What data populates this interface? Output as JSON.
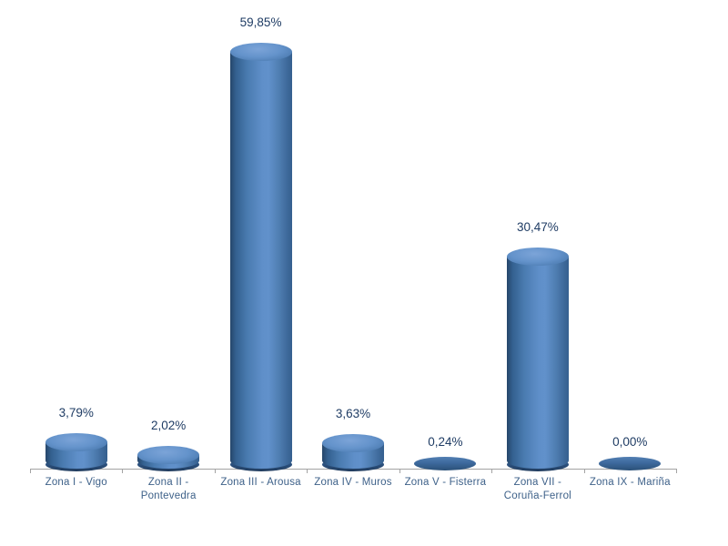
{
  "chart_data": {
    "type": "bar",
    "subtype": "3d-cylinder-vertical",
    "title": "",
    "xlabel": "",
    "ylabel": "",
    "categories": [
      "Zona I - Vigo",
      "Zona II - Pontevedra",
      "Zona III - Arousa",
      "Zona IV - Muros",
      "Zona V - Fisterra",
      "Zona VII - Coruña-Ferrol",
      "Zona IX - Mariña"
    ],
    "category_label_lines": [
      [
        "Zona I - Vigo"
      ],
      [
        "Zona II -",
        "Pontevedra"
      ],
      [
        "Zona III - Arousa"
      ],
      [
        "Zona IV - Muros"
      ],
      [
        "Zona V - Fisterra"
      ],
      [
        "Zona VII -",
        "Coruña-Ferrol"
      ],
      [
        "Zona IX - Mariña"
      ]
    ],
    "values": [
      3.79,
      2.02,
      59.85,
      3.63,
      0.24,
      30.47,
      0.0
    ],
    "data_labels": [
      "3,79%",
      "2,02%",
      "59,85%",
      "3,63%",
      "0,24%",
      "30,47%",
      "0,00%"
    ],
    "decimal_separator": ",",
    "unit": "%",
    "ylim": [
      0,
      65
    ],
    "grid": false,
    "legend": false,
    "colors": {
      "bar_main": "#4f81bd",
      "bar_highlight": "#6191cb",
      "bar_shadow": "#26466a",
      "bar_top_face": "#6493cb",
      "bar_bottom_rim": "#1f3a5c",
      "data_label_text": "#1f3c64",
      "category_label_text": "#3e6189",
      "axis_line": "#a3a3a3",
      "background": "#ffffff"
    }
  }
}
